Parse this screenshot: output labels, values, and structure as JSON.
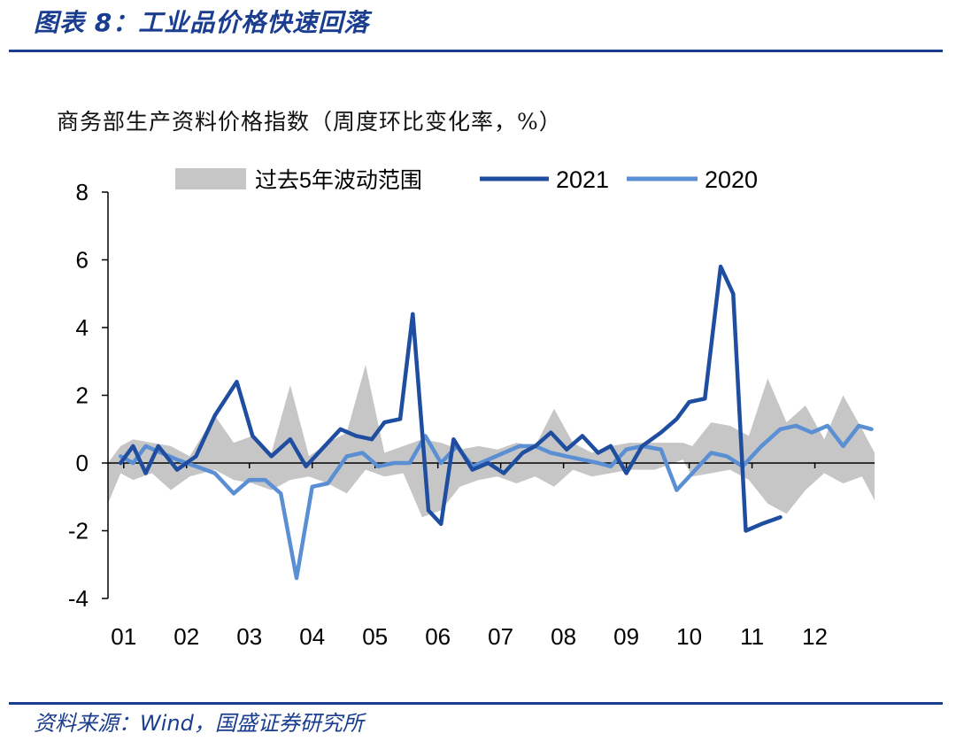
{
  "figure_title": "图表 8：工业品价格快速回落",
  "source_note": "资料来源：Wind，国盛证券研究所",
  "colors": {
    "band": "#c6c6c6",
    "s2021": "#1f4ea0",
    "s2020": "#5b8fd4",
    "accent": "#1a3d8f"
  },
  "chart_data": {
    "type": "line",
    "title": "商务部生产资料价格指数（周度环比变化率，%）",
    "ylim": [
      -4,
      8
    ],
    "yticks": [
      -4,
      -2,
      0,
      2,
      4,
      6,
      8
    ],
    "xlim": [
      0.8,
      13.0
    ],
    "xtick_labels": [
      "01",
      "02",
      "03",
      "04",
      "05",
      "06",
      "07",
      "08",
      "09",
      "10",
      "11",
      "12"
    ],
    "legend_position": "top",
    "band": {
      "name": "过去5年波动范围",
      "x": [
        0.8,
        1.0,
        1.2,
        1.5,
        1.8,
        2.1,
        2.5,
        2.8,
        3.1,
        3.4,
        3.7,
        4.0,
        4.3,
        4.6,
        4.9,
        5.2,
        5.5,
        5.8,
        6.1,
        6.4,
        6.7,
        7.0,
        7.3,
        7.6,
        7.9,
        8.2,
        8.5,
        8.8,
        9.1,
        9.5,
        9.95,
        10.1,
        10.4,
        10.7,
        11.0,
        11.3,
        11.6,
        11.9,
        12.2,
        12.5,
        12.8,
        13.0
      ],
      "upper": [
        0.0,
        0.5,
        0.7,
        0.6,
        0.5,
        0.2,
        1.4,
        0.6,
        0.8,
        0.3,
        2.3,
        0.2,
        0.6,
        0.9,
        2.9,
        0.3,
        0.5,
        0.7,
        0.6,
        0.4,
        0.5,
        0.4,
        0.6,
        0.5,
        1.6,
        0.6,
        0.3,
        0.5,
        0.6,
        0.6,
        0.6,
        0.5,
        1.2,
        1.1,
        0.8,
        2.5,
        1.2,
        1.7,
        0.7,
        2.0,
        1.0,
        0.3
      ],
      "lower": [
        -1.2,
        -0.3,
        -0.5,
        -0.3,
        -0.8,
        -0.4,
        -0.2,
        -0.5,
        -0.6,
        -0.8,
        -0.5,
        -0.4,
        -0.6,
        -0.9,
        -0.2,
        -0.4,
        -0.3,
        -1.6,
        -1.4,
        -0.7,
        -0.5,
        -0.4,
        -0.6,
        -0.4,
        -0.7,
        -0.2,
        -0.4,
        -0.3,
        -0.2,
        -0.2,
        0.1,
        -0.4,
        -0.3,
        -0.2,
        -0.5,
        -1.2,
        -1.5,
        -0.8,
        -0.3,
        -0.6,
        -0.4,
        -1.1
      ]
    },
    "series": [
      {
        "name": "2021",
        "x": [
          1.0,
          1.2,
          1.4,
          1.6,
          1.9,
          2.2,
          2.5,
          2.85,
          3.1,
          3.4,
          3.7,
          3.95,
          4.2,
          4.5,
          4.75,
          5.0,
          5.2,
          5.45,
          5.65,
          5.9,
          6.1,
          6.3,
          6.6,
          6.85,
          7.1,
          7.4,
          7.6,
          7.85,
          8.1,
          8.35,
          8.6,
          8.8,
          9.05,
          9.3,
          9.6,
          9.85,
          10.05,
          10.3,
          10.55,
          10.75,
          10.95,
          11.2,
          11.5
        ],
        "values": [
          0.0,
          0.5,
          -0.3,
          0.5,
          -0.2,
          0.2,
          1.4,
          2.4,
          0.8,
          0.2,
          0.7,
          -0.1,
          0.4,
          1.0,
          0.8,
          0.7,
          1.2,
          1.3,
          4.4,
          -1.4,
          -1.8,
          0.7,
          -0.2,
          0.0,
          -0.3,
          0.3,
          0.5,
          0.9,
          0.4,
          0.8,
          0.3,
          0.5,
          -0.3,
          0.5,
          0.9,
          1.3,
          1.8,
          1.9,
          5.8,
          5.0,
          -2.0,
          -1.8,
          -1.6
        ]
      },
      {
        "name": "2020",
        "x": [
          1.0,
          1.2,
          1.4,
          1.65,
          1.9,
          2.2,
          2.5,
          2.8,
          3.05,
          3.3,
          3.55,
          3.8,
          4.05,
          4.3,
          4.6,
          4.85,
          5.1,
          5.35,
          5.6,
          5.85,
          6.1,
          6.35,
          6.6,
          6.85,
          7.1,
          7.35,
          7.6,
          7.85,
          8.1,
          8.35,
          8.6,
          8.8,
          9.05,
          9.3,
          9.6,
          9.85,
          10.15,
          10.4,
          10.65,
          10.9,
          11.2,
          11.5,
          11.75,
          12.0,
          12.25,
          12.5,
          12.75,
          12.95
        ],
        "values": [
          0.2,
          0.0,
          0.5,
          0.3,
          0.1,
          -0.1,
          -0.3,
          -0.9,
          -0.5,
          -0.5,
          -0.9,
          -3.4,
          -0.7,
          -0.6,
          0.2,
          0.3,
          -0.1,
          0.0,
          0.0,
          0.8,
          0.0,
          0.5,
          -0.1,
          0.1,
          0.3,
          0.5,
          0.5,
          0.3,
          0.2,
          0.1,
          0.0,
          -0.1,
          0.4,
          0.5,
          0.4,
          -0.8,
          -0.2,
          0.3,
          0.2,
          -0.1,
          0.5,
          1.0,
          1.1,
          0.9,
          1.1,
          0.5,
          1.1,
          1.0
        ]
      }
    ]
  }
}
